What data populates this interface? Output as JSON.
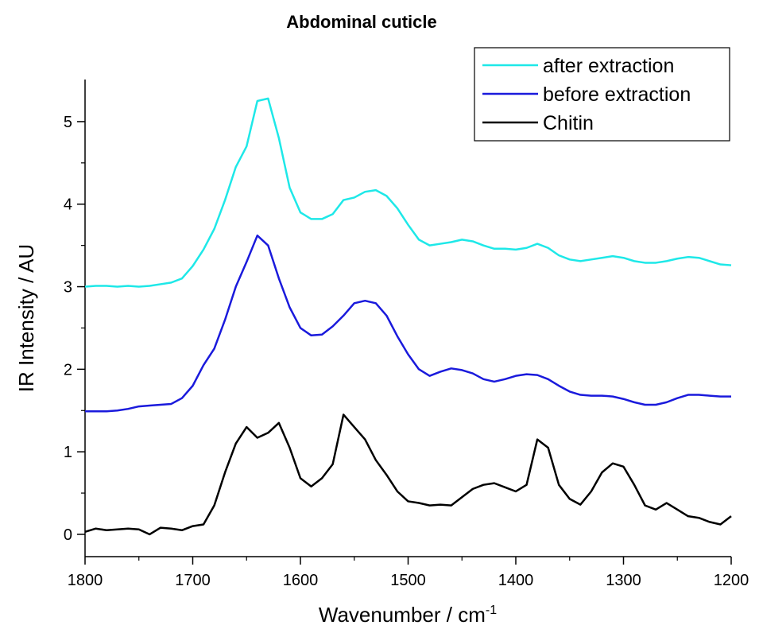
{
  "chart_data": {
    "type": "line",
    "title": "Abdominal cuticle",
    "xlabel": {
      "text": "Wavenumber / cm",
      "superscript": "-1"
    },
    "ylabel": "IR Intensity / AU",
    "xlim": [
      1800,
      1200
    ],
    "xticks": [
      1800,
      1700,
      1600,
      1500,
      1400,
      1300,
      1200
    ],
    "ylim": [
      -0.27,
      5.51
    ],
    "yticks": [
      0,
      1,
      2,
      3,
      4,
      5
    ],
    "legend": "top-right",
    "x": [
      1800,
      1790,
      1780,
      1770,
      1760,
      1750,
      1740,
      1730,
      1720,
      1710,
      1700,
      1690,
      1680,
      1670,
      1660,
      1650,
      1640,
      1630,
      1620,
      1610,
      1600,
      1590,
      1580,
      1570,
      1560,
      1550,
      1540,
      1530,
      1520,
      1510,
      1500,
      1490,
      1480,
      1470,
      1460,
      1450,
      1440,
      1430,
      1420,
      1410,
      1400,
      1390,
      1380,
      1370,
      1360,
      1350,
      1340,
      1330,
      1320,
      1310,
      1300,
      1290,
      1280,
      1270,
      1260,
      1250,
      1240,
      1230,
      1220,
      1210,
      1200
    ],
    "series": [
      {
        "name": "after extraction",
        "color": "#1ee8e8",
        "values": [
          3.0,
          3.01,
          3.01,
          3.0,
          3.01,
          3.0,
          3.01,
          3.03,
          3.05,
          3.1,
          3.25,
          3.45,
          3.7,
          4.05,
          4.45,
          4.7,
          5.25,
          5.28,
          4.8,
          4.2,
          3.9,
          3.82,
          3.82,
          3.88,
          4.05,
          4.08,
          4.15,
          4.17,
          4.1,
          3.95,
          3.75,
          3.57,
          3.5,
          3.52,
          3.54,
          3.57,
          3.55,
          3.5,
          3.46,
          3.46,
          3.45,
          3.47,
          3.52,
          3.47,
          3.38,
          3.33,
          3.31,
          3.33,
          3.35,
          3.37,
          3.35,
          3.31,
          3.29,
          3.29,
          3.31,
          3.34,
          3.36,
          3.35,
          3.31,
          3.27,
          3.26
        ]
      },
      {
        "name": "before extraction",
        "color": "#1a1adc",
        "values": [
          1.49,
          1.49,
          1.49,
          1.5,
          1.52,
          1.55,
          1.56,
          1.57,
          1.58,
          1.65,
          1.8,
          2.05,
          2.25,
          2.6,
          3.0,
          3.3,
          3.62,
          3.5,
          3.1,
          2.75,
          2.5,
          2.41,
          2.42,
          2.52,
          2.65,
          2.8,
          2.83,
          2.8,
          2.65,
          2.4,
          2.18,
          2.0,
          1.92,
          1.97,
          2.01,
          1.99,
          1.95,
          1.88,
          1.85,
          1.88,
          1.92,
          1.94,
          1.93,
          1.88,
          1.8,
          1.73,
          1.69,
          1.68,
          1.68,
          1.67,
          1.64,
          1.6,
          1.57,
          1.57,
          1.6,
          1.65,
          1.69,
          1.69,
          1.68,
          1.67,
          1.67
        ]
      },
      {
        "name": "Chitin",
        "color": "#000000",
        "values": [
          0.03,
          0.07,
          0.05,
          0.06,
          0.07,
          0.06,
          0.0,
          0.08,
          0.07,
          0.05,
          0.1,
          0.12,
          0.35,
          0.75,
          1.1,
          1.3,
          1.17,
          1.23,
          1.35,
          1.05,
          0.68,
          0.58,
          0.68,
          0.85,
          1.45,
          1.3,
          1.15,
          0.9,
          0.72,
          0.52,
          0.4,
          0.38,
          0.35,
          0.36,
          0.35,
          0.45,
          0.55,
          0.6,
          0.62,
          0.57,
          0.52,
          0.6,
          1.15,
          1.05,
          0.6,
          0.43,
          0.36,
          0.52,
          0.75,
          0.86,
          0.82,
          0.6,
          0.35,
          0.3,
          0.38,
          0.3,
          0.22,
          0.2,
          0.15,
          0.12,
          0.22
        ]
      }
    ]
  }
}
